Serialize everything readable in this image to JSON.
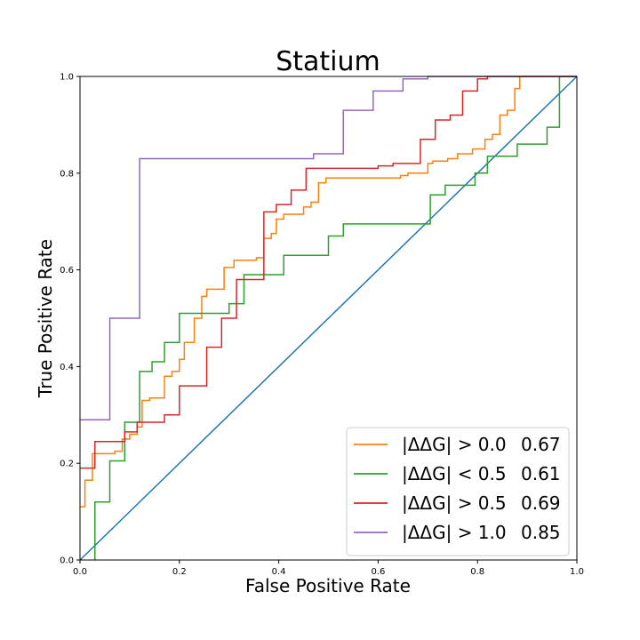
{
  "chart_data": {
    "type": "line",
    "title": "Statium",
    "xlabel": "False Positive Rate",
    "ylabel": "True Positive Rate",
    "xlim": [
      0,
      1
    ],
    "ylim": [
      0,
      1
    ],
    "xticks": [
      "0.0",
      "0.2",
      "0.4",
      "0.6",
      "0.8",
      "1.0"
    ],
    "yticks": [
      "0.0",
      "0.2",
      "0.4",
      "0.6",
      "0.8",
      "1.0"
    ],
    "grid": false,
    "legend_position": "bottom-right",
    "diagonal": {
      "x": [
        0,
        1
      ],
      "y": [
        0,
        1
      ],
      "color": "#1f77b4"
    },
    "series": [
      {
        "name": "|ΔΔG| > 0.0",
        "auc": "0.67",
        "color": "#ff7f0e",
        "points": [
          [
            0,
            0.11
          ],
          [
            0.01,
            0.11
          ],
          [
            0.01,
            0.165
          ],
          [
            0.025,
            0.165
          ],
          [
            0.025,
            0.22
          ],
          [
            0.07,
            0.22
          ],
          [
            0.07,
            0.225
          ],
          [
            0.085,
            0.225
          ],
          [
            0.085,
            0.25
          ],
          [
            0.1,
            0.25
          ],
          [
            0.1,
            0.26
          ],
          [
            0.115,
            0.26
          ],
          [
            0.115,
            0.275
          ],
          [
            0.125,
            0.275
          ],
          [
            0.125,
            0.33
          ],
          [
            0.14,
            0.33
          ],
          [
            0.14,
            0.335
          ],
          [
            0.17,
            0.335
          ],
          [
            0.17,
            0.38
          ],
          [
            0.185,
            0.38
          ],
          [
            0.185,
            0.39
          ],
          [
            0.2,
            0.39
          ],
          [
            0.2,
            0.415
          ],
          [
            0.21,
            0.415
          ],
          [
            0.21,
            0.45
          ],
          [
            0.23,
            0.45
          ],
          [
            0.23,
            0.5
          ],
          [
            0.245,
            0.5
          ],
          [
            0.245,
            0.545
          ],
          [
            0.255,
            0.545
          ],
          [
            0.255,
            0.56
          ],
          [
            0.29,
            0.56
          ],
          [
            0.29,
            0.605
          ],
          [
            0.31,
            0.605
          ],
          [
            0.31,
            0.62
          ],
          [
            0.355,
            0.62
          ],
          [
            0.355,
            0.625
          ],
          [
            0.37,
            0.625
          ],
          [
            0.37,
            0.665
          ],
          [
            0.385,
            0.665
          ],
          [
            0.385,
            0.675
          ],
          [
            0.395,
            0.675
          ],
          [
            0.395,
            0.705
          ],
          [
            0.41,
            0.705
          ],
          [
            0.41,
            0.715
          ],
          [
            0.45,
            0.715
          ],
          [
            0.45,
            0.73
          ],
          [
            0.465,
            0.73
          ],
          [
            0.465,
            0.74
          ],
          [
            0.48,
            0.74
          ],
          [
            0.48,
            0.78
          ],
          [
            0.495,
            0.78
          ],
          [
            0.495,
            0.79
          ],
          [
            0.645,
            0.79
          ],
          [
            0.645,
            0.795
          ],
          [
            0.66,
            0.795
          ],
          [
            0.66,
            0.8
          ],
          [
            0.7,
            0.8
          ],
          [
            0.7,
            0.82
          ],
          [
            0.71,
            0.82
          ],
          [
            0.71,
            0.825
          ],
          [
            0.74,
            0.825
          ],
          [
            0.74,
            0.83
          ],
          [
            0.76,
            0.83
          ],
          [
            0.76,
            0.84
          ],
          [
            0.79,
            0.84
          ],
          [
            0.79,
            0.85
          ],
          [
            0.815,
            0.85
          ],
          [
            0.815,
            0.87
          ],
          [
            0.83,
            0.87
          ],
          [
            0.83,
            0.88
          ],
          [
            0.845,
            0.88
          ],
          [
            0.845,
            0.92
          ],
          [
            0.86,
            0.92
          ],
          [
            0.86,
            0.93
          ],
          [
            0.875,
            0.93
          ],
          [
            0.875,
            0.975
          ],
          [
            0.885,
            0.975
          ],
          [
            0.885,
            1.0
          ],
          [
            1.0,
            1.0
          ]
        ]
      },
      {
        "name": "|ΔΔG| < 0.5",
        "auc": "0.61",
        "color": "#2ca02c",
        "points": [
          [
            0.03,
            0
          ],
          [
            0.03,
            0.12
          ],
          [
            0.06,
            0.12
          ],
          [
            0.06,
            0.205
          ],
          [
            0.09,
            0.205
          ],
          [
            0.09,
            0.285
          ],
          [
            0.12,
            0.285
          ],
          [
            0.12,
            0.39
          ],
          [
            0.145,
            0.39
          ],
          [
            0.145,
            0.41
          ],
          [
            0.17,
            0.41
          ],
          [
            0.17,
            0.45
          ],
          [
            0.2,
            0.45
          ],
          [
            0.2,
            0.51
          ],
          [
            0.3,
            0.51
          ],
          [
            0.3,
            0.53
          ],
          [
            0.33,
            0.53
          ],
          [
            0.33,
            0.59
          ],
          [
            0.41,
            0.59
          ],
          [
            0.41,
            0.63
          ],
          [
            0.5,
            0.63
          ],
          [
            0.5,
            0.67
          ],
          [
            0.53,
            0.67
          ],
          [
            0.53,
            0.695
          ],
          [
            0.705,
            0.695
          ],
          [
            0.705,
            0.755
          ],
          [
            0.735,
            0.755
          ],
          [
            0.735,
            0.775
          ],
          [
            0.795,
            0.775
          ],
          [
            0.795,
            0.8
          ],
          [
            0.82,
            0.8
          ],
          [
            0.82,
            0.835
          ],
          [
            0.88,
            0.835
          ],
          [
            0.88,
            0.86
          ],
          [
            0.94,
            0.86
          ],
          [
            0.94,
            0.895
          ],
          [
            0.965,
            0.895
          ],
          [
            0.965,
            1.0
          ],
          [
            1.0,
            1.0
          ]
        ]
      },
      {
        "name": "|ΔΔG| > 0.5",
        "auc": "0.69",
        "color": "#d62728",
        "points": [
          [
            0,
            0.19
          ],
          [
            0.03,
            0.19
          ],
          [
            0.03,
            0.245
          ],
          [
            0.09,
            0.245
          ],
          [
            0.09,
            0.265
          ],
          [
            0.115,
            0.265
          ],
          [
            0.115,
            0.285
          ],
          [
            0.17,
            0.285
          ],
          [
            0.17,
            0.3
          ],
          [
            0.2,
            0.3
          ],
          [
            0.2,
            0.36
          ],
          [
            0.255,
            0.36
          ],
          [
            0.255,
            0.44
          ],
          [
            0.285,
            0.44
          ],
          [
            0.285,
            0.5
          ],
          [
            0.315,
            0.5
          ],
          [
            0.315,
            0.58
          ],
          [
            0.37,
            0.58
          ],
          [
            0.37,
            0.72
          ],
          [
            0.395,
            0.72
          ],
          [
            0.395,
            0.735
          ],
          [
            0.425,
            0.735
          ],
          [
            0.425,
            0.765
          ],
          [
            0.455,
            0.765
          ],
          [
            0.455,
            0.81
          ],
          [
            0.6,
            0.81
          ],
          [
            0.6,
            0.815
          ],
          [
            0.63,
            0.815
          ],
          [
            0.63,
            0.82
          ],
          [
            0.685,
            0.82
          ],
          [
            0.685,
            0.87
          ],
          [
            0.715,
            0.87
          ],
          [
            0.715,
            0.91
          ],
          [
            0.745,
            0.91
          ],
          [
            0.745,
            0.92
          ],
          [
            0.77,
            0.92
          ],
          [
            0.77,
            0.97
          ],
          [
            0.8,
            0.97
          ],
          [
            0.8,
            0.995
          ],
          [
            0.82,
            0.995
          ],
          [
            0.82,
            1.0
          ],
          [
            1.0,
            1.0
          ]
        ]
      },
      {
        "name": "|ΔΔG| > 1.0",
        "auc": "0.85",
        "color": "#9467bd",
        "points": [
          [
            0,
            0.29
          ],
          [
            0.06,
            0.29
          ],
          [
            0.06,
            0.5
          ],
          [
            0.12,
            0.5
          ],
          [
            0.12,
            0.83
          ],
          [
            0.47,
            0.83
          ],
          [
            0.47,
            0.84
          ],
          [
            0.53,
            0.84
          ],
          [
            0.53,
            0.93
          ],
          [
            0.59,
            0.93
          ],
          [
            0.59,
            0.97
          ],
          [
            0.65,
            0.97
          ],
          [
            0.65,
            0.995
          ],
          [
            0.7,
            0.995
          ],
          [
            0.7,
            1.0
          ],
          [
            1.0,
            1.0
          ]
        ]
      }
    ]
  }
}
